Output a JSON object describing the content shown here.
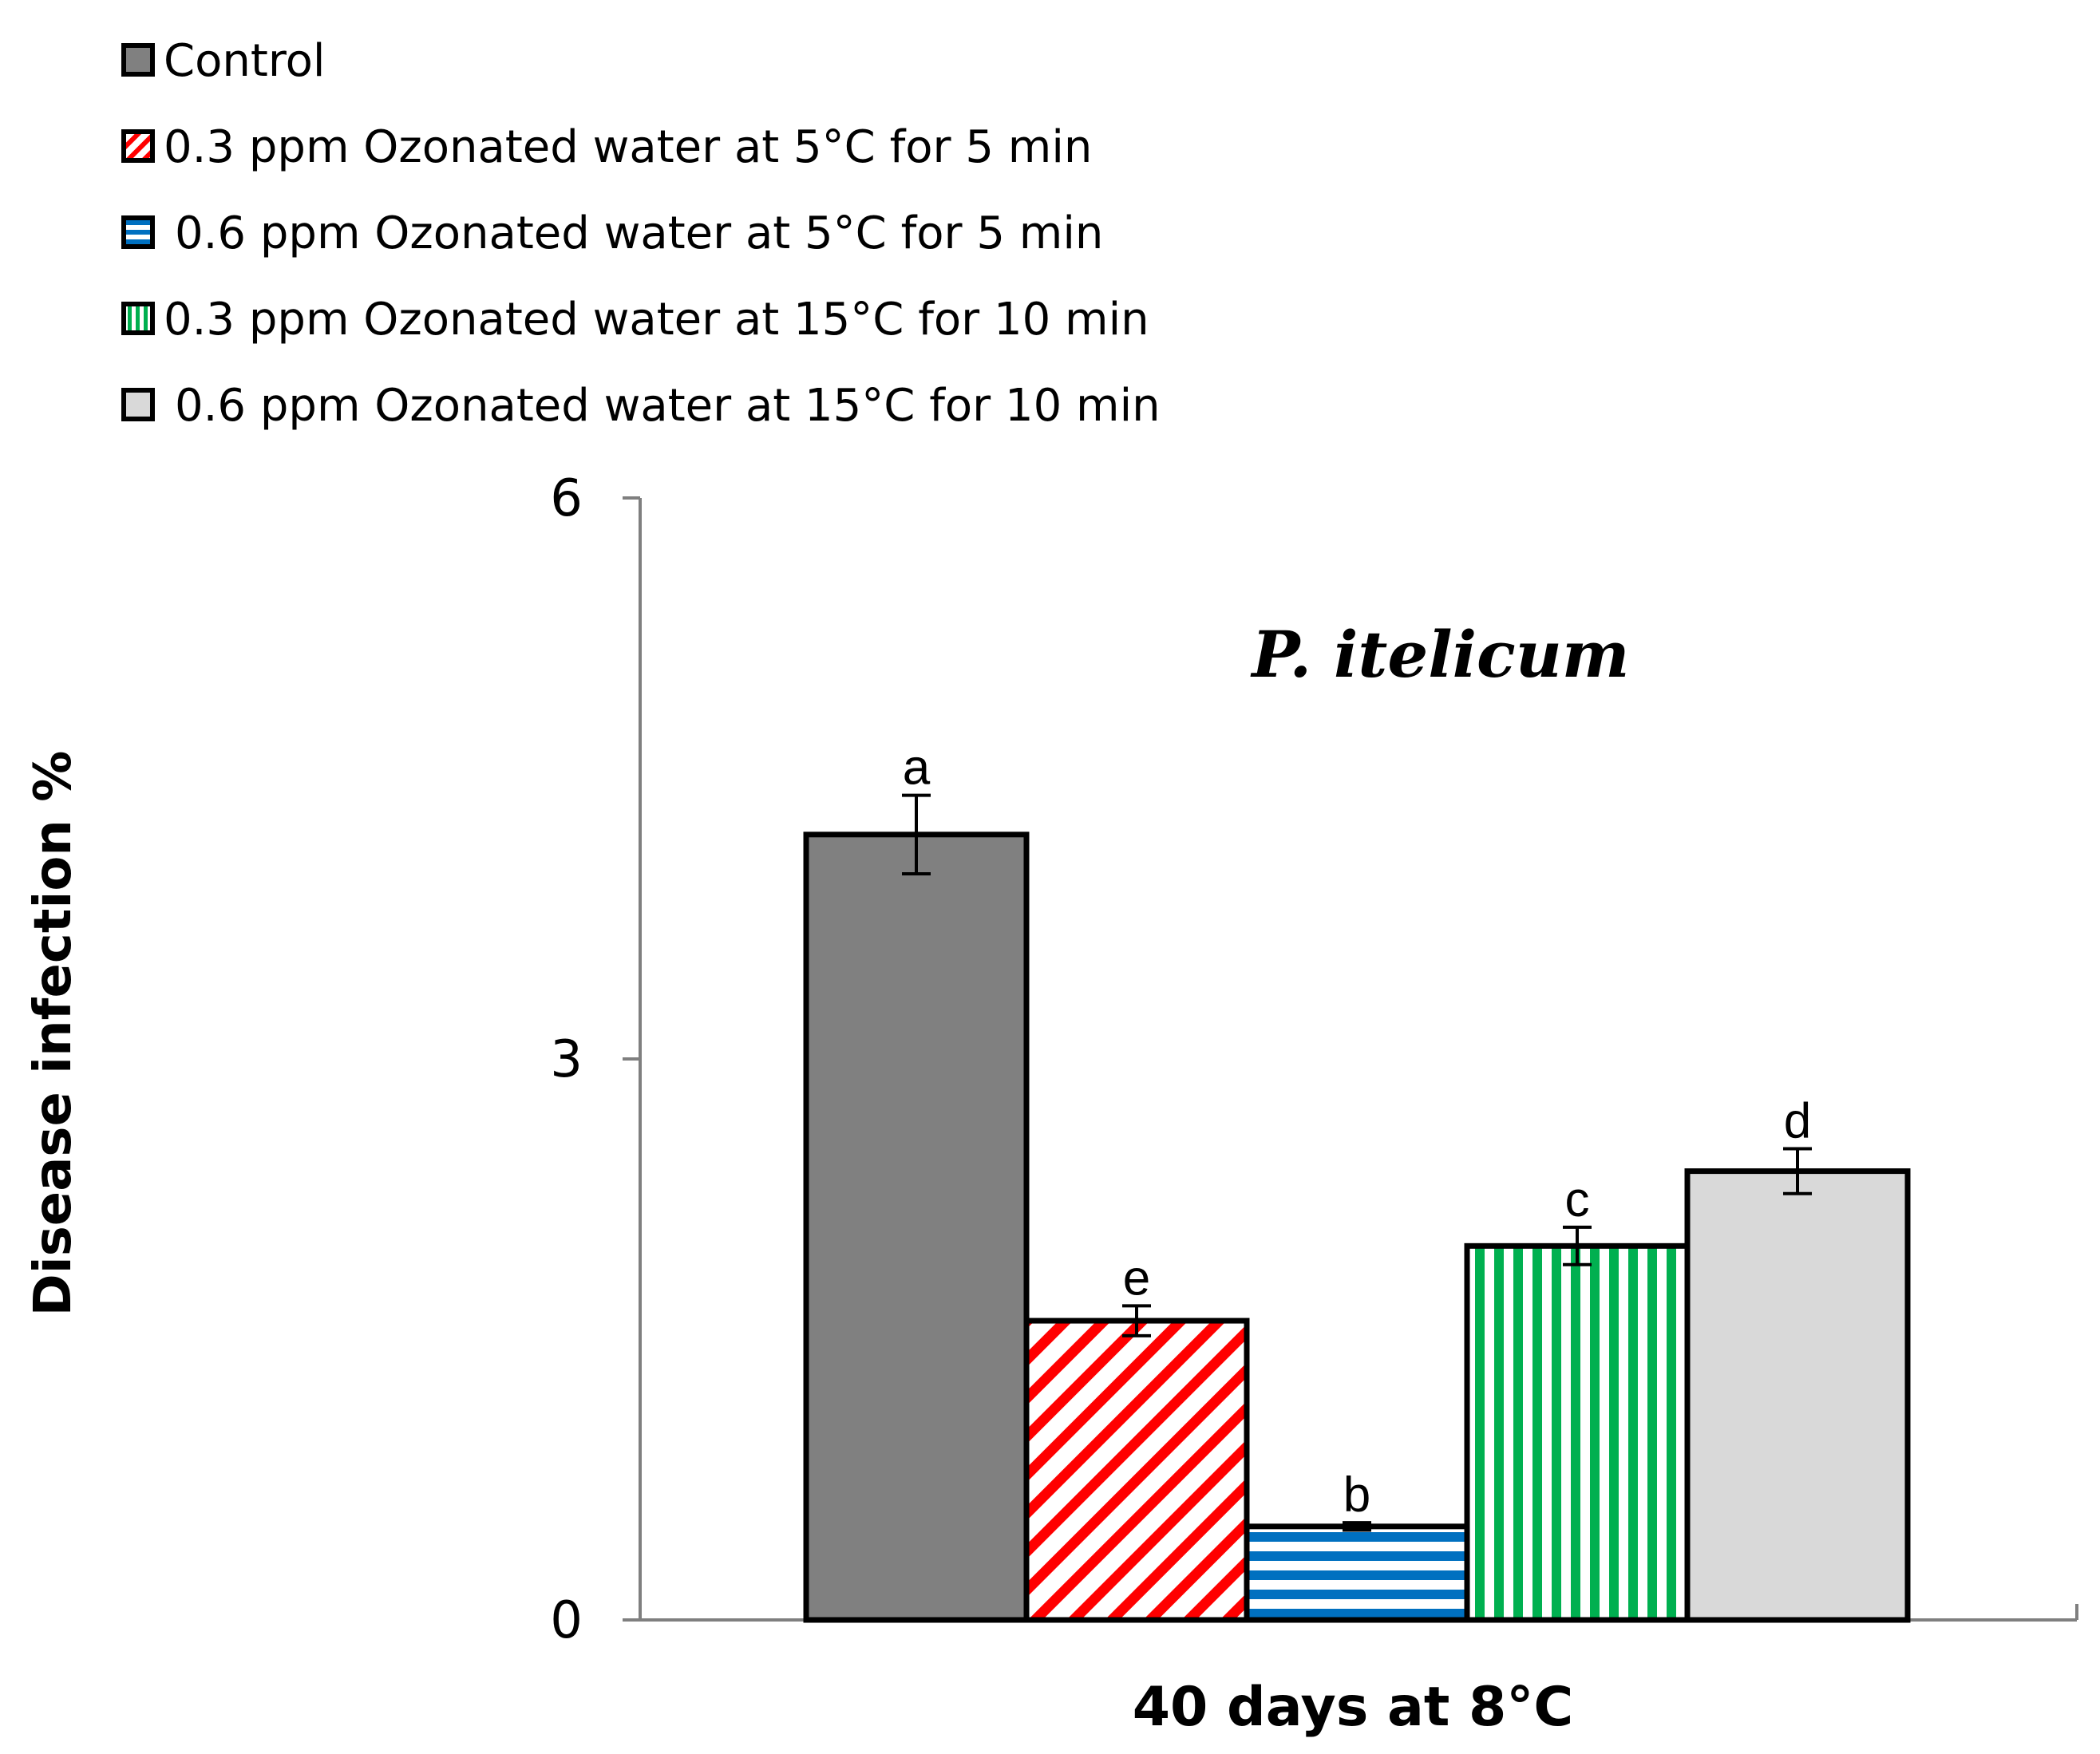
{
  "chart_data": {
    "type": "bar",
    "title": "",
    "annotation": "P. itelicum",
    "xlabel": "40 days at 8°C",
    "ylabel": "Disease infection  %",
    "ylim": [
      0,
      6
    ],
    "yticks": [
      0,
      3,
      6
    ],
    "grid": false,
    "legend_position": "top-left",
    "categories": [
      "40 days at 8°C"
    ],
    "series": [
      {
        "name": "Control",
        "values": [
          4.2
        ],
        "error": [
          0.21
        ],
        "letter": "a",
        "color": "#808080",
        "pattern": "solid"
      },
      {
        "name": "0.3 ppm Ozonated water at 5°C for 5 min",
        "values": [
          1.6
        ],
        "error": [
          0.08
        ],
        "letter": "e",
        "color": "#ff0000",
        "pattern": "diagonal"
      },
      {
        "name": "0.6 ppm Ozonated water at 5°C for 5 min",
        "values": [
          0.5
        ],
        "error": [
          0.02
        ],
        "letter": "b",
        "color": "#0070c0",
        "pattern": "horizontal"
      },
      {
        "name": "0.3 ppm Ozonated water at 15°C for 10 min",
        "values": [
          2.0
        ],
        "error": [
          0.1
        ],
        "letter": "c",
        "color": "#00b050",
        "pattern": "vertical"
      },
      {
        "name": "0.6 ppm Ozonated water at 15°C for 10 min",
        "values": [
          2.4
        ],
        "error": [
          0.12
        ],
        "letter": "d",
        "color": "#d9d9d9",
        "pattern": "solid"
      }
    ]
  }
}
